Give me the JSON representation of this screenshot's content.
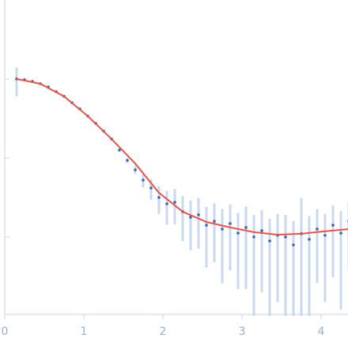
{
  "chart_data": {
    "type": "scatter",
    "xlim": [
      0,
      4.34
    ],
    "xticks": [
      0,
      1,
      2,
      3,
      4
    ],
    "ylim": [
      0.001,
      10
    ],
    "yticks": [
      1,
      0.1,
      0.01
    ],
    "log_y": true,
    "x": [
      0.15,
      0.25,
      0.35,
      0.45,
      0.55,
      0.65,
      0.75,
      0.85,
      0.95,
      1.05,
      1.15,
      1.25,
      1.35,
      1.45,
      1.55,
      1.65,
      1.75,
      1.85,
      1.95,
      2.05,
      2.15,
      2.25,
      2.35,
      2.45,
      2.55,
      2.65,
      2.75,
      2.85,
      2.95,
      3.05,
      3.15,
      3.25,
      3.35,
      3.45,
      3.55,
      3.65,
      3.75,
      3.85,
      3.95,
      4.05,
      4.15,
      4.25,
      4.35
    ],
    "series": [
      {
        "color": "#3767b8",
        "error_color": "#c9d8f1",
        "values": [
          1.0,
          0.977,
          0.933,
          0.871,
          0.794,
          0.692,
          0.603,
          0.501,
          0.417,
          0.339,
          0.275,
          0.219,
          0.174,
          0.126,
          0.0933,
          0.0708,
          0.0525,
          0.0417,
          0.0316,
          0.0263,
          0.0275,
          0.0209,
          0.0178,
          0.0191,
          0.0141,
          0.0158,
          0.0126,
          0.0148,
          0.0112,
          0.0132,
          0.01,
          0.012,
          0.00891,
          0.0105,
          0.01,
          0.00794,
          0.011,
          0.00933,
          0.0126,
          0.0105,
          0.0141,
          0.0112,
          0.0158
        ],
        "errors": [
          0.4,
          0.05,
          0.04,
          0.03,
          0.03,
          0.02,
          0.02,
          0.015,
          0.012,
          0.01,
          0.008,
          0.007,
          0.006,
          0.006,
          0.006,
          0.008,
          0.01,
          0.012,
          0.012,
          0.012,
          0.013,
          0.012,
          0.011,
          0.012,
          0.01,
          0.011,
          0.01,
          0.011,
          0.009,
          0.011,
          0.009,
          0.01,
          0.008,
          0.009,
          0.009,
          0.008,
          0.02,
          0.009,
          0.01,
          0.009,
          0.011,
          0.01,
          0.012
        ]
      }
    ],
    "fit": {
      "color": "#e8534a",
      "x": [
        0.15,
        0.45,
        0.75,
        1.05,
        1.35,
        1.65,
        1.95,
        2.25,
        2.55,
        2.85,
        3.15,
        3.45,
        3.75,
        4.05,
        4.35
      ],
      "values": [
        1.0,
        0.871,
        0.603,
        0.339,
        0.174,
        0.085,
        0.0363,
        0.0209,
        0.0155,
        0.0132,
        0.0115,
        0.0107,
        0.011,
        0.0118,
        0.0126
      ]
    }
  }
}
